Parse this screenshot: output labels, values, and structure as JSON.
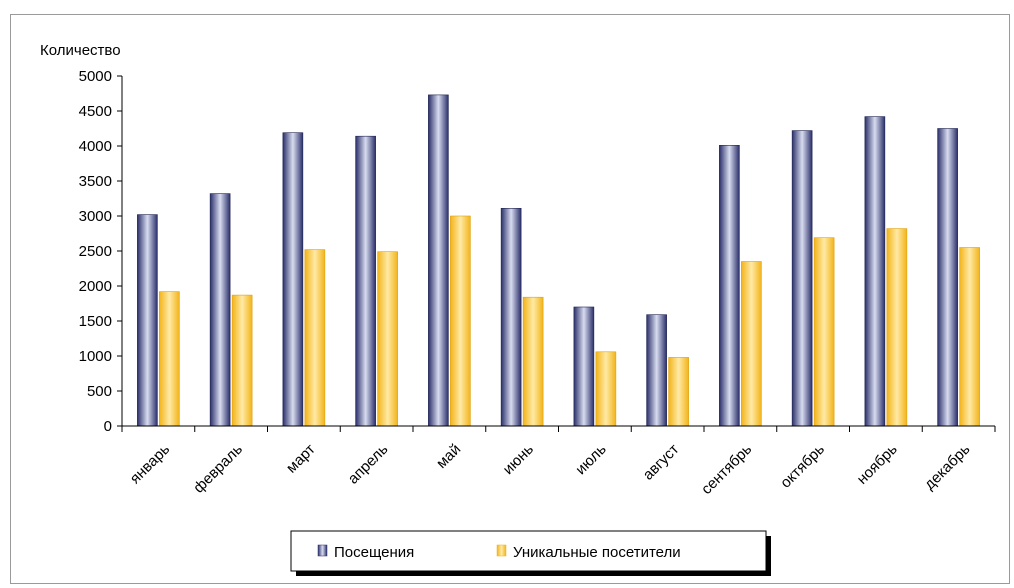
{
  "chart_data": {
    "type": "bar",
    "ylabel": "Количество",
    "ylim": [
      0,
      5000
    ],
    "yticks": [
      0,
      500,
      1000,
      1500,
      2000,
      2500,
      3000,
      3500,
      4000,
      4500,
      5000
    ],
    "categories": [
      "январь",
      "февраль",
      "март",
      "апрель",
      "май",
      "июнь",
      "июль",
      "август",
      "сентябрь",
      "октябрь",
      "ноябрь",
      "декабрь"
    ],
    "series": [
      {
        "name": "Посещения",
        "values": [
          3020,
          3320,
          4190,
          4140,
          4730,
          3110,
          1700,
          1590,
          4010,
          4220,
          4420,
          4250
        ]
      },
      {
        "name": "Уникальные посетители",
        "values": [
          1920,
          1870,
          2520,
          2490,
          3000,
          1840,
          1060,
          980,
          2350,
          2690,
          2820,
          2550
        ]
      }
    ],
    "grid": false,
    "legend": "bottom"
  },
  "colors": {
    "series1_dark": "#2a2f6a",
    "series1_light": "#d8dcef",
    "series2_dark": "#f2b419",
    "series2_light": "#ffeaa6"
  }
}
